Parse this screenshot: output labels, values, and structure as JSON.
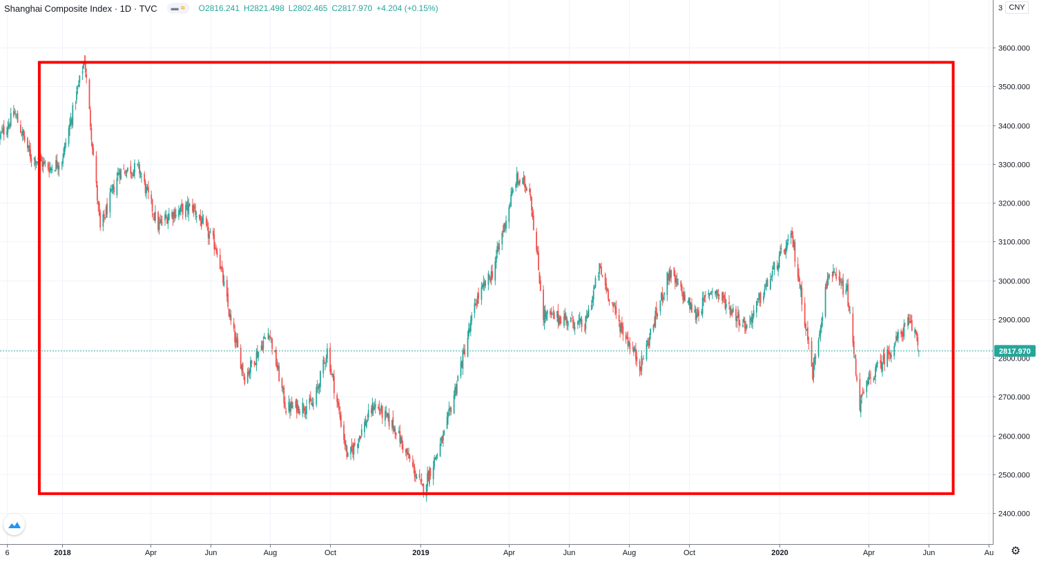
{
  "header": {
    "title": "Shanghai Composite Index · 1D · TVC",
    "ohlc": {
      "open": "O2816.241",
      "high": "H2821.498",
      "low": "L2802.465",
      "close": "C2817.970",
      "change": "+4.204 (+0.15%)"
    }
  },
  "price_axis": {
    "currency": "CNY",
    "top_partial_label": "3"
  },
  "colors": {
    "up": "#26a69a",
    "down": "#ef5350",
    "highlight_box": "#ff0000",
    "last_price_line": "#26a69a",
    "grid": "#f0f3fa"
  },
  "icons": {
    "logo": "tradingview-logo-icon",
    "settings": "gear-icon"
  },
  "chart_data": {
    "type": "candlestick",
    "title": "Shanghai Composite Index",
    "interval": "1D",
    "source": "TVC",
    "ylim": [
      2385,
      3705
    ],
    "yticks": [
      2400,
      2500,
      2600,
      2700,
      2800,
      2900,
      3000,
      3100,
      3200,
      3300,
      3400,
      3500,
      3600
    ],
    "ytick_labels": [
      "2400.000",
      "2500.000",
      "2600.000",
      "2700.000",
      "2800.000",
      "2900.000",
      "3000.000",
      "3100.000",
      "3200.000",
      "3300.000",
      "3400.000",
      "3500.000",
      "3600.000"
    ],
    "xticks": [
      {
        "label": "6",
        "date": "2017-11-06"
      },
      {
        "label": "2018",
        "date": "2018-01-01"
      },
      {
        "label": "Apr",
        "date": "2018-04-01"
      },
      {
        "label": "Jun",
        "date": "2018-06-01"
      },
      {
        "label": "Aug",
        "date": "2018-08-01"
      },
      {
        "label": "Oct",
        "date": "2018-10-01"
      },
      {
        "label": "2019",
        "date": "2019-01-01"
      },
      {
        "label": "Apr",
        "date": "2019-04-01"
      },
      {
        "label": "Jun",
        "date": "2019-06-01"
      },
      {
        "label": "Aug",
        "date": "2019-08-01"
      },
      {
        "label": "Oct",
        "date": "2019-10-01"
      },
      {
        "label": "2020",
        "date": "2020-01-01"
      },
      {
        "label": "Apr",
        "date": "2020-04-01"
      },
      {
        "label": "Jun",
        "date": "2020-06-01"
      },
      {
        "label": "Au",
        "date": "2020-08-01"
      }
    ],
    "anchors": [
      [
        "2017-10-30",
        3370
      ],
      [
        "2017-11-14",
        3430
      ],
      [
        "2017-11-30",
        3320
      ],
      [
        "2017-12-20",
        3290
      ],
      [
        "2018-01-01",
        3310
      ],
      [
        "2018-01-24",
        3570
      ],
      [
        "2018-02-09",
        3130
      ],
      [
        "2018-02-28",
        3280
      ],
      [
        "2018-03-20",
        3290
      ],
      [
        "2018-04-09",
        3140
      ],
      [
        "2018-04-20",
        3170
      ],
      [
        "2018-05-14",
        3190
      ],
      [
        "2018-06-08",
        3080
      ],
      [
        "2018-06-22",
        2890
      ],
      [
        "2018-07-06",
        2750
      ],
      [
        "2018-07-31",
        2870
      ],
      [
        "2018-08-17",
        2670
      ],
      [
        "2018-09-14",
        2680
      ],
      [
        "2018-09-28",
        2820
      ],
      [
        "2018-10-19",
        2540
      ],
      [
        "2018-11-15",
        2680
      ],
      [
        "2018-12-06",
        2620
      ],
      [
        "2019-01-03",
        2460
      ],
      [
        "2019-01-25",
        2600
      ],
      [
        "2019-02-27",
        2950
      ],
      [
        "2019-03-15",
        3020
      ],
      [
        "2019-04-08",
        3260
      ],
      [
        "2019-04-22",
        3240
      ],
      [
        "2019-05-06",
        2910
      ],
      [
        "2019-05-31",
        2900
      ],
      [
        "2019-06-17",
        2880
      ],
      [
        "2019-07-02",
        3030
      ],
      [
        "2019-07-22",
        2890
      ],
      [
        "2019-08-13",
        2780
      ],
      [
        "2019-09-11",
        3020
      ],
      [
        "2019-10-08",
        2910
      ],
      [
        "2019-10-25",
        2980
      ],
      [
        "2019-11-29",
        2880
      ],
      [
        "2019-12-31",
        3050
      ],
      [
        "2020-01-14",
        3110
      ],
      [
        "2020-01-23",
        2970
      ],
      [
        "2020-02-04",
        2760
      ],
      [
        "2020-02-20",
        3020
      ],
      [
        "2020-03-10",
        2970
      ],
      [
        "2020-03-23",
        2680
      ],
      [
        "2020-04-01",
        2740
      ],
      [
        "2020-04-23",
        2820
      ],
      [
        "2020-05-11",
        2890
      ],
      [
        "2020-05-20",
        2860
      ],
      [
        "2020-05-22",
        2818
      ]
    ],
    "range": {
      "low": 2440.9,
      "low_date": "2019-01-04",
      "high": 3587.0,
      "high_date": "2018-01-29"
    },
    "last": {
      "date": "2020-05-22",
      "open": 2816.241,
      "high": 2821.498,
      "low": 2802.465,
      "close": 2817.97,
      "change": 4.204,
      "change_pct": 0.15
    },
    "last_price_label": "2817.970",
    "highlight_box": {
      "start": "2017-12-09",
      "end": "2020-06-26",
      "top": 3562,
      "bottom": 2450
    }
  }
}
